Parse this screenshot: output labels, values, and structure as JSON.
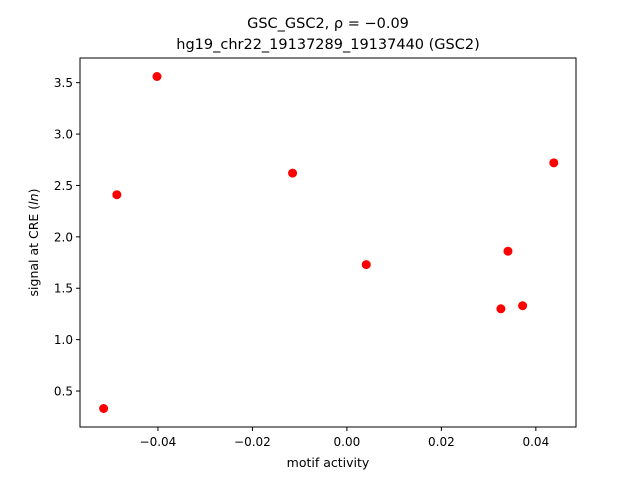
{
  "chart_data": {
    "type": "scatter",
    "title_line1": "GSC_GSC2, ρ = −0.09",
    "title_line2": "hg19_chr22_19137289_19137440 (GSC2)",
    "xlabel": "motif activity",
    "ylabel": "signal at CRE (ln)",
    "xlim": [
      -0.0565,
      0.0485
    ],
    "ylim": [
      0.15,
      3.74
    ],
    "xticks": [
      -0.04,
      -0.02,
      0.0,
      0.02,
      0.04
    ],
    "xtick_labels": [
      "−0.04",
      "−0.02",
      "0.00",
      "0.02",
      "0.04"
    ],
    "yticks": [
      0.5,
      1.0,
      1.5,
      2.0,
      2.5,
      3.0,
      3.5
    ],
    "ytick_labels": [
      "0.5",
      "1.0",
      "1.5",
      "2.0",
      "2.5",
      "3.0",
      "3.5"
    ],
    "grid": false,
    "marker_color": "#ff0000",
    "points": [
      {
        "x": -0.0515,
        "y": 0.33
      },
      {
        "x": -0.0487,
        "y": 2.41
      },
      {
        "x": -0.0402,
        "y": 3.56
      },
      {
        "x": -0.0115,
        "y": 2.62
      },
      {
        "x": 0.0041,
        "y": 1.73
      },
      {
        "x": 0.0326,
        "y": 1.3
      },
      {
        "x": 0.0341,
        "y": 1.86
      },
      {
        "x": 0.0372,
        "y": 1.33
      },
      {
        "x": 0.0438,
        "y": 2.72
      }
    ]
  }
}
